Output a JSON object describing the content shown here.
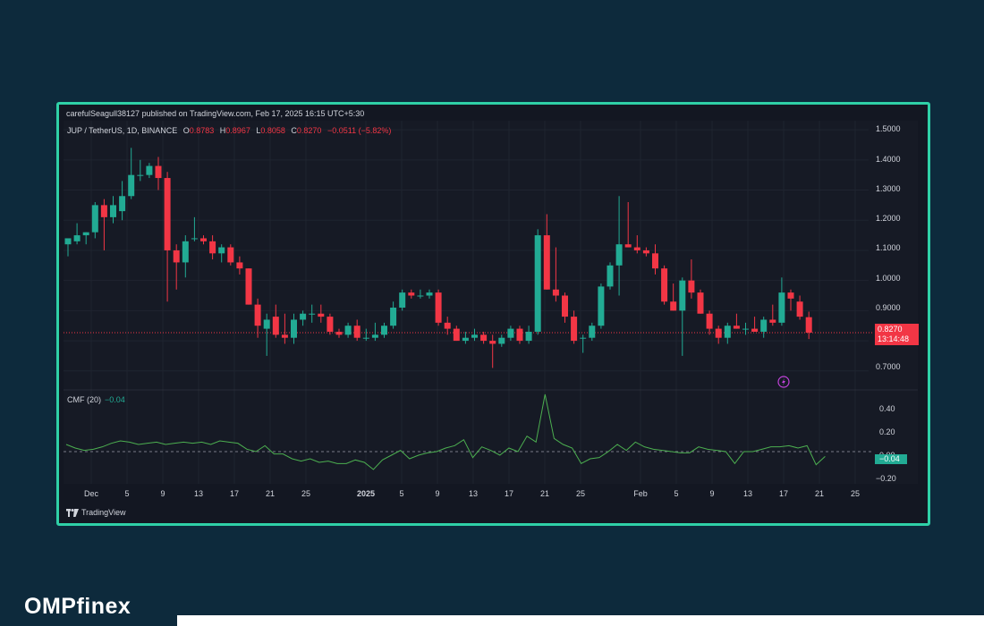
{
  "header": {
    "publisher": "carefulSeagull38127 published on TradingView.com, Feb 17, 2025 16:15 UTC+5:30"
  },
  "legend": {
    "symbol": "JUP / TetherUS, 1D, BINANCE",
    "open_label": "O",
    "open": "0.8783",
    "high_label": "H",
    "high": "0.8967",
    "low_label": "L",
    "low": "0.8058",
    "close_label": "C",
    "close": "0.8270",
    "change": "−0.0511 (−5.82%)"
  },
  "cmf_legend": {
    "name": "CMF (20)",
    "value": "−0.04"
  },
  "price_tag": {
    "price": "0.8270",
    "countdown": "13:14:48"
  },
  "cmf_tag": {
    "value": "−0.04"
  },
  "price_axis": [
    "1.5000",
    "1.4000",
    "1.3000",
    "1.2000",
    "1.1000",
    "1.0000",
    "0.9000",
    "0.7000"
  ],
  "cmf_axis": [
    "0.40",
    "0.20",
    "0.00",
    "−0.20"
  ],
  "x_axis": [
    "Dec",
    "5",
    "9",
    "13",
    "17",
    "21",
    "25",
    "2025",
    "5",
    "9",
    "13",
    "17",
    "21",
    "25",
    "Feb",
    "5",
    "9",
    "13",
    "17",
    "21",
    "25"
  ],
  "footer": {
    "logo_text": "TradingView"
  },
  "brand": {
    "name_pre": "OMPf",
    "name_i": "i",
    "name_post": "nex"
  },
  "colors": {
    "up": "#22ab94",
    "down": "#f23645",
    "accent_border": "#2fd0a7",
    "cmf_line": "#4caf50"
  },
  "chart_data": [
    {
      "type": "candlestick",
      "title": "JUP / TetherUS, 1D, BINANCE",
      "ylim": [
        0.64,
        1.53
      ],
      "current_price": 0.827,
      "candles": [
        {
          "o": 1.12,
          "h": 1.14,
          "l": 1.08,
          "c": 1.14
        },
        {
          "o": 1.13,
          "h": 1.19,
          "l": 1.12,
          "c": 1.15
        },
        {
          "o": 1.15,
          "h": 1.16,
          "l": 1.12,
          "c": 1.16
        },
        {
          "o": 1.16,
          "h": 1.26,
          "l": 1.14,
          "c": 1.25
        },
        {
          "o": 1.25,
          "h": 1.27,
          "l": 1.1,
          "c": 1.21
        },
        {
          "o": 1.21,
          "h": 1.28,
          "l": 1.19,
          "c": 1.25
        },
        {
          "o": 1.23,
          "h": 1.33,
          "l": 1.2,
          "c": 1.28
        },
        {
          "o": 1.28,
          "h": 1.44,
          "l": 1.27,
          "c": 1.35
        },
        {
          "o": 1.35,
          "h": 1.4,
          "l": 1.33,
          "c": 1.35
        },
        {
          "o": 1.35,
          "h": 1.39,
          "l": 1.34,
          "c": 1.38
        },
        {
          "o": 1.38,
          "h": 1.41,
          "l": 1.3,
          "c": 1.34
        },
        {
          "o": 1.34,
          "h": 1.36,
          "l": 0.93,
          "c": 1.1
        },
        {
          "o": 1.1,
          "h": 1.12,
          "l": 0.97,
          "c": 1.06
        },
        {
          "o": 1.06,
          "h": 1.15,
          "l": 1.01,
          "c": 1.13
        },
        {
          "o": 1.14,
          "h": 1.21,
          "l": 1.13,
          "c": 1.14
        },
        {
          "o": 1.14,
          "h": 1.15,
          "l": 1.12,
          "c": 1.13
        },
        {
          "o": 1.13,
          "h": 1.15,
          "l": 1.07,
          "c": 1.09
        },
        {
          "o": 1.09,
          "h": 1.12,
          "l": 1.06,
          "c": 1.11
        },
        {
          "o": 1.11,
          "h": 1.12,
          "l": 1.05,
          "c": 1.06
        },
        {
          "o": 1.06,
          "h": 1.08,
          "l": 1.02,
          "c": 1.04
        },
        {
          "o": 1.04,
          "h": 1.04,
          "l": 0.92,
          "c": 0.92
        },
        {
          "o": 0.92,
          "h": 0.94,
          "l": 0.81,
          "c": 0.85
        },
        {
          "o": 0.84,
          "h": 0.89,
          "l": 0.75,
          "c": 0.87
        },
        {
          "o": 0.88,
          "h": 0.92,
          "l": 0.81,
          "c": 0.82
        },
        {
          "o": 0.82,
          "h": 0.89,
          "l": 0.79,
          "c": 0.81
        },
        {
          "o": 0.81,
          "h": 0.89,
          "l": 0.79,
          "c": 0.87
        },
        {
          "o": 0.87,
          "h": 0.9,
          "l": 0.85,
          "c": 0.89
        },
        {
          "o": 0.89,
          "h": 0.92,
          "l": 0.86,
          "c": 0.89
        },
        {
          "o": 0.89,
          "h": 0.92,
          "l": 0.86,
          "c": 0.88
        },
        {
          "o": 0.88,
          "h": 0.89,
          "l": 0.82,
          "c": 0.83
        },
        {
          "o": 0.83,
          "h": 0.84,
          "l": 0.81,
          "c": 0.82
        },
        {
          "o": 0.82,
          "h": 0.86,
          "l": 0.81,
          "c": 0.85
        },
        {
          "o": 0.85,
          "h": 0.87,
          "l": 0.8,
          "c": 0.81
        },
        {
          "o": 0.81,
          "h": 0.84,
          "l": 0.8,
          "c": 0.81
        },
        {
          "o": 0.81,
          "h": 0.86,
          "l": 0.8,
          "c": 0.82
        },
        {
          "o": 0.82,
          "h": 0.86,
          "l": 0.81,
          "c": 0.85
        },
        {
          "o": 0.85,
          "h": 0.93,
          "l": 0.84,
          "c": 0.91
        },
        {
          "o": 0.91,
          "h": 0.97,
          "l": 0.9,
          "c": 0.96
        },
        {
          "o": 0.96,
          "h": 0.97,
          "l": 0.94,
          "c": 0.95
        },
        {
          "o": 0.95,
          "h": 0.97,
          "l": 0.94,
          "c": 0.95
        },
        {
          "o": 0.95,
          "h": 0.97,
          "l": 0.94,
          "c": 0.96
        },
        {
          "o": 0.96,
          "h": 0.97,
          "l": 0.85,
          "c": 0.86
        },
        {
          "o": 0.86,
          "h": 0.88,
          "l": 0.82,
          "c": 0.84
        },
        {
          "o": 0.84,
          "h": 0.85,
          "l": 0.8,
          "c": 0.8
        },
        {
          "o": 0.8,
          "h": 0.83,
          "l": 0.79,
          "c": 0.81
        },
        {
          "o": 0.81,
          "h": 0.84,
          "l": 0.8,
          "c": 0.82
        },
        {
          "o": 0.82,
          "h": 0.83,
          "l": 0.79,
          "c": 0.8
        },
        {
          "o": 0.8,
          "h": 0.82,
          "l": 0.71,
          "c": 0.79
        },
        {
          "o": 0.79,
          "h": 0.82,
          "l": 0.78,
          "c": 0.81
        },
        {
          "o": 0.81,
          "h": 0.85,
          "l": 0.8,
          "c": 0.84
        },
        {
          "o": 0.84,
          "h": 0.85,
          "l": 0.79,
          "c": 0.8
        },
        {
          "o": 0.8,
          "h": 0.85,
          "l": 0.79,
          "c": 0.83
        },
        {
          "o": 0.83,
          "h": 1.17,
          "l": 0.82,
          "c": 1.15
        },
        {
          "o": 1.15,
          "h": 1.22,
          "l": 0.97,
          "c": 0.97
        },
        {
          "o": 0.97,
          "h": 1.11,
          "l": 0.93,
          "c": 0.95
        },
        {
          "o": 0.95,
          "h": 0.96,
          "l": 0.86,
          "c": 0.88
        },
        {
          "o": 0.88,
          "h": 0.9,
          "l": 0.79,
          "c": 0.8
        },
        {
          "o": 0.81,
          "h": 0.82,
          "l": 0.76,
          "c": 0.81
        },
        {
          "o": 0.81,
          "h": 0.86,
          "l": 0.8,
          "c": 0.85
        },
        {
          "o": 0.85,
          "h": 0.99,
          "l": 0.84,
          "c": 0.98
        },
        {
          "o": 0.98,
          "h": 1.06,
          "l": 0.97,
          "c": 1.05
        },
        {
          "o": 1.05,
          "h": 1.28,
          "l": 0.95,
          "c": 1.12
        },
        {
          "o": 1.12,
          "h": 1.26,
          "l": 1.11,
          "c": 1.11
        },
        {
          "o": 1.11,
          "h": 1.15,
          "l": 1.09,
          "c": 1.1
        },
        {
          "o": 1.1,
          "h": 1.11,
          "l": 1.08,
          "c": 1.09
        },
        {
          "o": 1.09,
          "h": 1.12,
          "l": 1.02,
          "c": 1.04
        },
        {
          "o": 1.04,
          "h": 1.05,
          "l": 0.92,
          "c": 0.93
        },
        {
          "o": 0.93,
          "h": 0.99,
          "l": 0.9,
          "c": 0.9
        },
        {
          "o": 0.9,
          "h": 1.01,
          "l": 0.75,
          "c": 1.0
        },
        {
          "o": 1.0,
          "h": 1.07,
          "l": 0.94,
          "c": 0.96
        },
        {
          "o": 0.96,
          "h": 0.97,
          "l": 0.89,
          "c": 0.89
        },
        {
          "o": 0.89,
          "h": 0.9,
          "l": 0.82,
          "c": 0.84
        },
        {
          "o": 0.84,
          "h": 0.85,
          "l": 0.79,
          "c": 0.81
        },
        {
          "o": 0.81,
          "h": 0.86,
          "l": 0.79,
          "c": 0.85
        },
        {
          "o": 0.85,
          "h": 0.89,
          "l": 0.84,
          "c": 0.84
        },
        {
          "o": 0.84,
          "h": 0.86,
          "l": 0.82,
          "c": 0.84
        },
        {
          "o": 0.84,
          "h": 0.88,
          "l": 0.83,
          "c": 0.83
        },
        {
          "o": 0.83,
          "h": 0.88,
          "l": 0.81,
          "c": 0.87
        },
        {
          "o": 0.87,
          "h": 0.92,
          "l": 0.85,
          "c": 0.86
        },
        {
          "o": 0.86,
          "h": 1.01,
          "l": 0.85,
          "c": 0.96
        },
        {
          "o": 0.96,
          "h": 0.97,
          "l": 0.9,
          "c": 0.94
        },
        {
          "o": 0.93,
          "h": 0.95,
          "l": 0.87,
          "c": 0.88
        },
        {
          "o": 0.8783,
          "h": 0.8967,
          "l": 0.8058,
          "c": 0.827
        }
      ]
    },
    {
      "type": "line",
      "title": "CMF (20)",
      "ylim": [
        -0.27,
        0.51
      ],
      "values": [
        0.06,
        0.03,
        0.01,
        0.02,
        0.04,
        0.07,
        0.09,
        0.08,
        0.06,
        0.07,
        0.08,
        0.06,
        0.07,
        0.08,
        0.07,
        0.08,
        0.06,
        0.09,
        0.08,
        0.07,
        0.02,
        0.0,
        0.05,
        -0.02,
        -0.02,
        -0.06,
        -0.08,
        -0.06,
        -0.09,
        -0.08,
        -0.1,
        -0.1,
        -0.07,
        -0.09,
        -0.15,
        -0.07,
        -0.03,
        0.01,
        -0.06,
        -0.03,
        -0.01,
        0.0,
        0.03,
        0.05,
        0.1,
        -0.05,
        0.04,
        0.01,
        -0.03,
        0.03,
        0.0,
        0.13,
        0.08,
        0.48,
        0.11,
        0.06,
        0.03,
        -0.1,
        -0.06,
        -0.05,
        0.0,
        0.06,
        0.01,
        0.08,
        0.04,
        0.02,
        0.01,
        0.0,
        -0.01,
        -0.01,
        0.04,
        0.02,
        0.01,
        0.0,
        -0.1,
        0.0,
        0.0,
        0.02,
        0.04,
        0.04,
        0.05,
        0.03,
        0.05,
        -0.11,
        -0.04
      ]
    }
  ]
}
